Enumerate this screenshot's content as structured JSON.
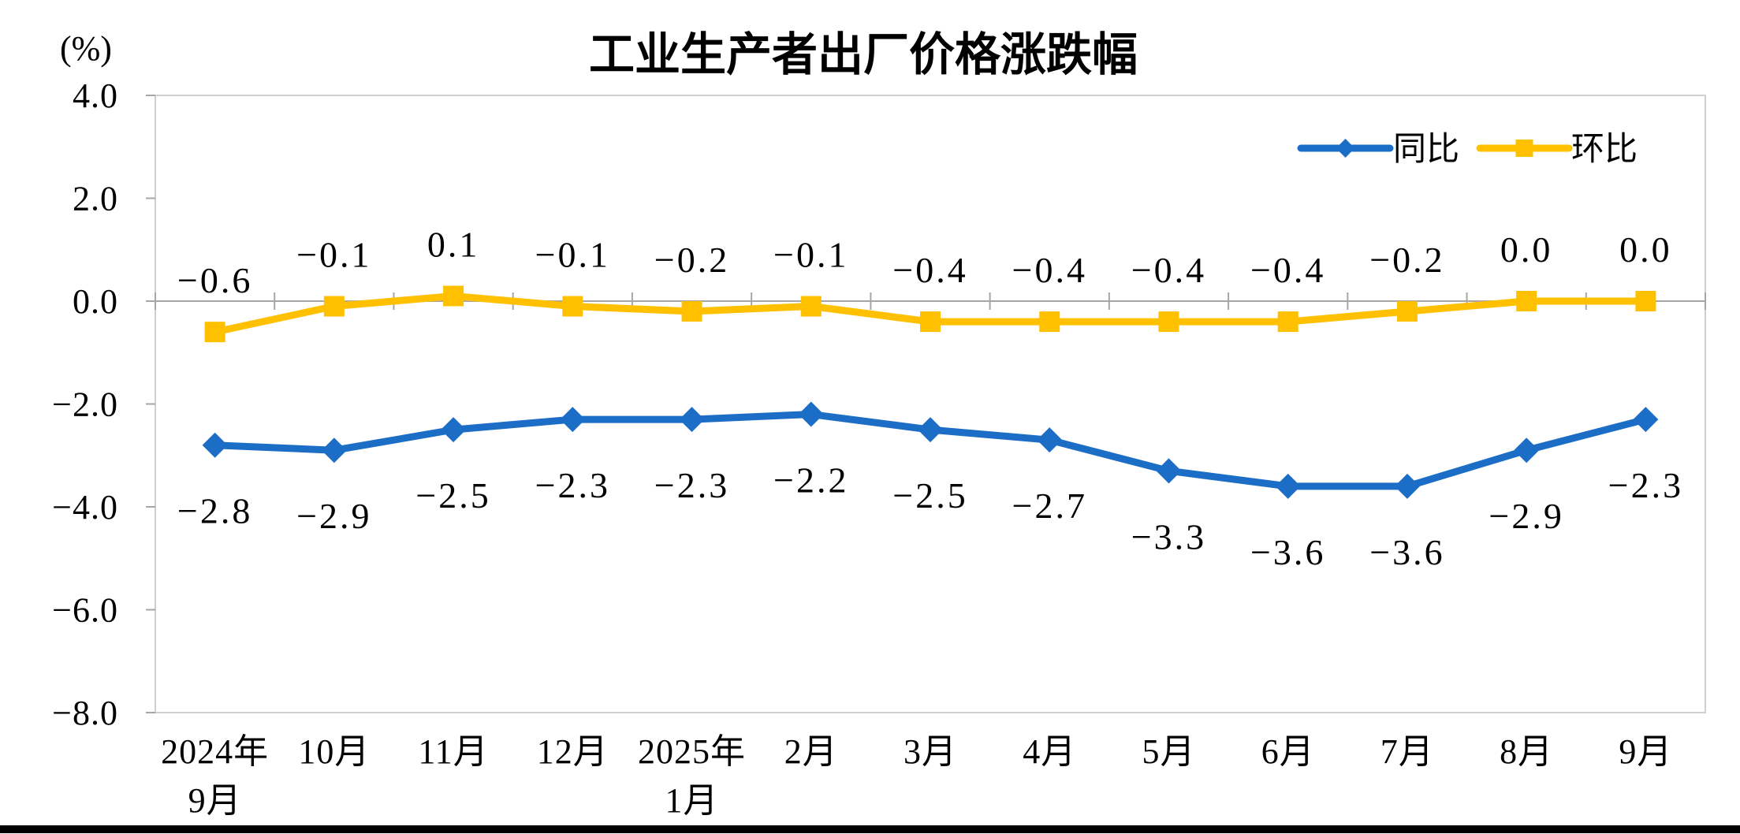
{
  "page": {
    "title": "工业生产者出厂价格涨跌幅",
    "unit_label": "(%)"
  },
  "legend": {
    "items": [
      {
        "label": "同比"
      },
      {
        "label": "环比"
      }
    ]
  },
  "chart_data": {
    "type": "line",
    "title": "工业生产者出厂价格涨跌幅",
    "ylabel": "(%)",
    "ylim": [
      -8.0,
      4.0
    ],
    "ytick_labels": [
      "4.0",
      "2.0",
      "0.0",
      "-2.0",
      "-4.0",
      "-6.0",
      "-8.0"
    ],
    "grid": false,
    "legend_position": "top-right",
    "categories": [
      {
        "line1": "2024年",
        "line2": "9月"
      },
      {
        "line1": "10月"
      },
      {
        "line1": "11月"
      },
      {
        "line1": "12月"
      },
      {
        "line1": "2025年",
        "line2": "1月"
      },
      {
        "line1": "2月"
      },
      {
        "line1": "3月"
      },
      {
        "line1": "4月"
      },
      {
        "line1": "5月"
      },
      {
        "line1": "6月"
      },
      {
        "line1": "7月"
      },
      {
        "line1": "8月"
      },
      {
        "line1": "9月"
      }
    ],
    "series": [
      {
        "name": "同比",
        "color": "#1C6DC6",
        "marker": "diamond",
        "label_position": "below",
        "values": [
          -2.8,
          -2.9,
          -2.5,
          -2.3,
          -2.3,
          -2.2,
          -2.5,
          -2.7,
          -3.3,
          -3.6,
          -3.6,
          -2.9,
          -2.3
        ],
        "labels": [
          "-2.8",
          "-2.9",
          "-2.5",
          "-2.3",
          "-2.3",
          "-2.2",
          "-2.5",
          "-2.7",
          "-3.3",
          "-3.6",
          "-3.6",
          "-2.9",
          "-2.3"
        ]
      },
      {
        "name": "环比",
        "color": "#FFC000",
        "marker": "square",
        "label_position": "above",
        "values": [
          -0.6,
          -0.1,
          0.1,
          -0.1,
          -0.2,
          -0.1,
          -0.4,
          -0.4,
          -0.4,
          -0.4,
          -0.2,
          0.0,
          0.0
        ],
        "labels": [
          "-0.6",
          "-0.1",
          "0.1",
          "-0.1",
          "-0.2",
          "-0.1",
          "-0.4",
          "-0.4",
          "-0.4",
          "-0.4",
          "-0.2",
          "0.0",
          "0.0"
        ]
      }
    ]
  }
}
